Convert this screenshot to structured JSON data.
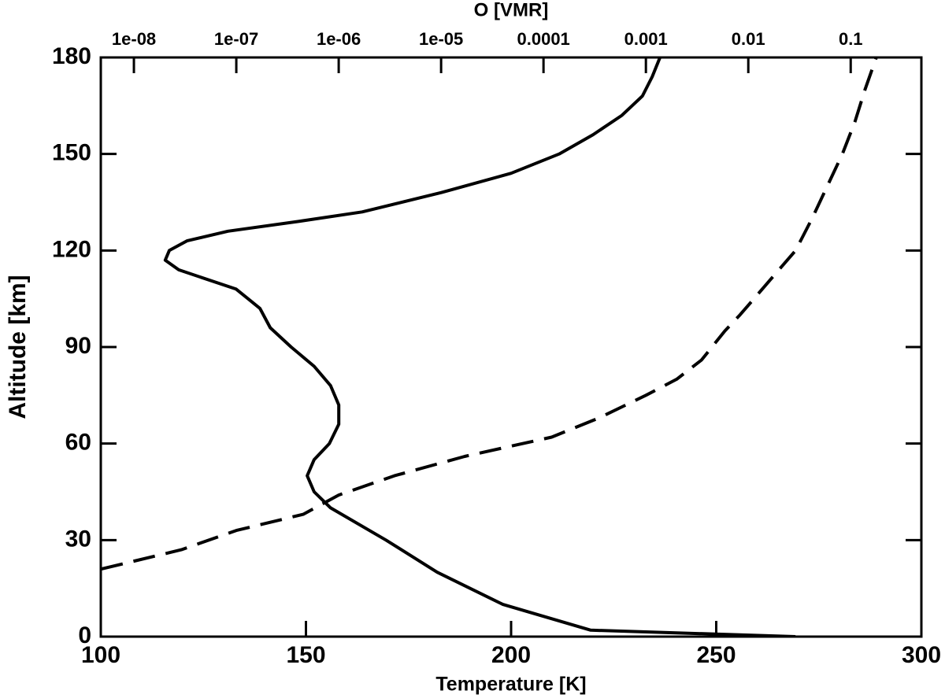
{
  "chart_data": {
    "type": "line",
    "xlabel": "Temperature [K]",
    "x2label": "O [VMR]",
    "ylabel": "Altitude [km]",
    "xlim": [
      100,
      300
    ],
    "xticks": [
      100,
      150,
      200,
      250,
      300
    ],
    "x2lim": [
      4.75e-09,
      0.49
    ],
    "x2log": true,
    "x2ticks": [
      {
        "value": 1e-08,
        "label": "1e-08"
      },
      {
        "value": 1e-07,
        "label": "1e-07"
      },
      {
        "value": 1e-06,
        "label": "1e-06"
      },
      {
        "value": 1e-05,
        "label": "1e-05"
      },
      0.0001,
      0.001,
      0.01,
      0.1
    ],
    "ylim": [
      0,
      180
    ],
    "yticks": [
      0,
      30,
      60,
      90,
      120,
      150,
      180
    ],
    "series": [
      {
        "color": "#000000",
        "dash": false,
        "axis": "x",
        "x": [
          269.3,
          219.4,
          198,
          182,
          169.5,
          156,
          152,
          150.3,
          152,
          155.7,
          158,
          158,
          156,
          152,
          146.4,
          141.3,
          138.8,
          133,
          119,
          115.7,
          116.7,
          121,
          131,
          148,
          163.7,
          183,
          200,
          211.7,
          220,
          227,
          232,
          234.4,
          236.3
        ],
        "y": [
          0,
          2,
          10,
          20,
          30,
          40,
          45,
          50,
          55,
          60,
          66,
          72,
          78,
          84,
          90,
          96,
          102,
          108,
          114,
          117,
          120,
          123,
          126,
          129,
          132,
          138,
          144,
          150,
          156,
          162,
          168,
          174,
          180
        ]
      },
      {
        "color": "#000000",
        "dash": true,
        "axis": "x2",
        "x": [
          4.8e-09,
          2.9e-08,
          1e-07,
          4.5e-07,
          1e-06,
          3.5e-06,
          1.7e-05,
          0.00012,
          0.00035,
          0.001,
          0.002,
          0.0035,
          0.0059,
          0.0083,
          0.0155,
          0.029,
          0.042,
          0.059,
          0.083,
          0.11,
          0.138,
          0.178
        ],
        "y": [
          21,
          27,
          33,
          38,
          44,
          50,
          56,
          62,
          68,
          75,
          80,
          86,
          95,
          100,
          110,
          120,
          130,
          140,
          150,
          160,
          170,
          180
        ]
      }
    ]
  }
}
